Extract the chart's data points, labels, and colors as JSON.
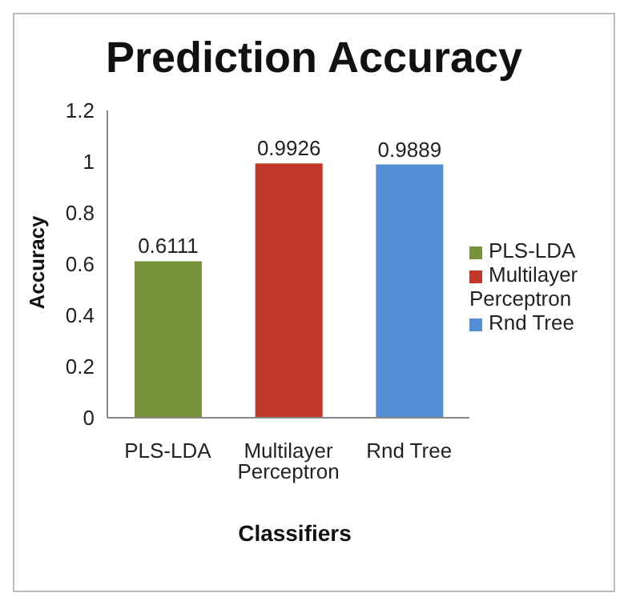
{
  "chart_data": {
    "type": "bar",
    "title": "Prediction Accuracy",
    "xlabel": "Classifiers",
    "ylabel": "Accuracy",
    "categories": [
      "PLS-LDA",
      "Multilayer Perceptron",
      "Rnd Tree"
    ],
    "series": [
      {
        "name": "PLS-LDA",
        "color": "#77933c",
        "values": [
          0.6111,
          null,
          null
        ]
      },
      {
        "name": "Multilayer Perceptron",
        "color": "#c0392b",
        "values": [
          null,
          0.9926,
          null
        ]
      },
      {
        "name": "Rnd Tree",
        "color": "#558ed5",
        "values": [
          null,
          null,
          0.9889
        ]
      }
    ],
    "ylim": [
      0,
      1.2
    ],
    "yticks": [
      0,
      0.2,
      0.4,
      0.6,
      0.8,
      1,
      1.2
    ],
    "data_labels": true,
    "legend": "right"
  }
}
